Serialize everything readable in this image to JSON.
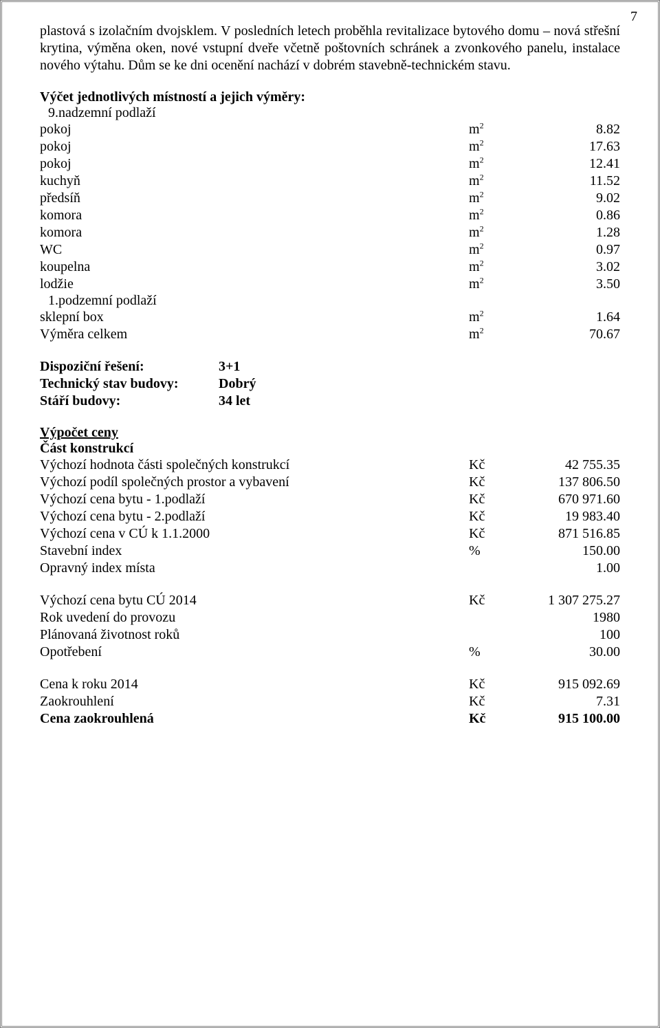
{
  "page_number": "7",
  "intro": "plastová s izolačním dvojsklem. V posledních letech proběhla revitalizace bytového domu – nová střešní krytina, výměna oken, nové vstupní dveře včetně poštovních schránek a zvonkového panelu, instalace nového výtahu. Dům se ke dni ocenění nachází v dobrém stavebně-technickém stavu.",
  "rooms_heading": "Výčet jednotlivých místností a jejich výměry:",
  "rooms_subline": "9.nadzemní podlaží",
  "rooms": [
    {
      "label": "pokoj",
      "unit": "m²",
      "value": "8.82"
    },
    {
      "label": "pokoj",
      "unit": "m²",
      "value": "17.63"
    },
    {
      "label": "pokoj",
      "unit": "m²",
      "value": "12.41"
    },
    {
      "label": "kuchyň",
      "unit": "m²",
      "value": "11.52"
    },
    {
      "label": "předsíň",
      "unit": "m²",
      "value": "9.02"
    },
    {
      "label": "komora",
      "unit": "m²",
      "value": "0.86"
    },
    {
      "label": "komora",
      "unit": "m²",
      "value": "1.28"
    },
    {
      "label": "WC",
      "unit": "m²",
      "value": "0.97"
    },
    {
      "label": "koupelna",
      "unit": "m²",
      "value": "3.02"
    },
    {
      "label": "lodžie",
      "unit": "m²",
      "value": "3.50"
    }
  ],
  "rooms2_subline": "1.podzemní podlaží",
  "rooms2": [
    {
      "label": "sklepní box",
      "unit": "m²",
      "value": "1.64"
    },
    {
      "label": "Výměra celkem",
      "unit": "m²",
      "value": "70.67"
    }
  ],
  "meta": [
    {
      "label": "Dispoziční řešení:",
      "value": "3+1"
    },
    {
      "label": "Technický stav budovy:",
      "value": "Dobrý"
    },
    {
      "label": "Stáří budovy:",
      "value": "34 let"
    }
  ],
  "calc_heading": "Výpočet ceny",
  "calc_subheading": "Část konstrukcí",
  "calc": [
    {
      "label": "Výchozí hodnota části společných konstrukcí",
      "unit": "Kč",
      "value": "42 755.35"
    },
    {
      "label": "Výchozí podíl společných prostor a vybavení",
      "unit": "Kč",
      "value": "137 806.50"
    },
    {
      "label": "Výchozí cena bytu - 1.podlaží",
      "unit": "Kč",
      "value": "670 971.60"
    },
    {
      "label": "Výchozí cena bytu - 2.podlaží",
      "unit": "Kč",
      "value": "19 983.40"
    },
    {
      "label": "Výchozí cena v CÚ k 1.1.2000",
      "unit": "Kč",
      "value": "871 516.85"
    },
    {
      "label": "Stavební index",
      "unit": "%",
      "value": "150.00"
    },
    {
      "label": "Opravný index místa",
      "unit": "",
      "value": "1.00"
    }
  ],
  "calc2": [
    {
      "label": "Výchozí cena bytu CÚ 2014",
      "unit": "Kč",
      "value": "1 307 275.27"
    },
    {
      "label": "Rok uvedení do provozu",
      "unit": "",
      "value": "1980"
    },
    {
      "label": "Plánovaná životnost roků",
      "unit": "",
      "value": "100"
    },
    {
      "label": "Opotřebení",
      "unit": "%",
      "value": "30.00"
    }
  ],
  "calc3": [
    {
      "label": "Cena k roku 2014",
      "unit": "Kč",
      "value": "915 092.69",
      "bold": false
    },
    {
      "label": "Zaokrouhlení",
      "unit": "Kč",
      "value": "7.31",
      "bold": false
    },
    {
      "label": "Cena zaokrouhlená",
      "unit": "Kč",
      "value": "915 100.00",
      "bold": true
    }
  ],
  "m2_html": "m<sup>2</sup>"
}
